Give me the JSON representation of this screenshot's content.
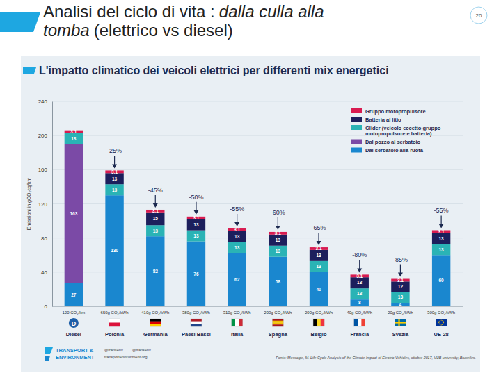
{
  "slide": {
    "title": [
      {
        "text": "Analisi del ciclo di vita :",
        "italic": false
      },
      {
        "text": "dalla culla alla tomba",
        "italic": true
      },
      {
        "text": "(elettrico vs diesel)",
        "italic": false
      }
    ],
    "page_number": 20
  },
  "chart_data": {
    "type": "bar",
    "stacked": true,
    "data_labels": true,
    "grid": true,
    "legend": "top-right",
    "title": "L'impatto climatico dei veicoli elettrici per differenti mix energetici",
    "y_label": "Emissioni in gCO₂eq/km",
    "categories": [
      "Diesel",
      "Polonia",
      "Germania",
      "Paesi Bassi",
      "Italia",
      "Spagna",
      "Belgio",
      "Francia",
      "Svezia",
      "UE-28"
    ],
    "category_sublabels": [
      "120 CO₂/km",
      "650g CO₂/kWh",
      "410g CO₂/kWh",
      "380g CO₂/kWh",
      "310g CO₂/kWh",
      "290g CO₂/kWh",
      "200g CO₂/kWh",
      "40g CO₂/kWh",
      "20g CO₂/kWh",
      "300g CO₂/kWh"
    ],
    "diesel_icon": "D",
    "reduction_labels": [
      null,
      "-25%",
      "-45%",
      "-50%",
      "-55%",
      "-60%",
      "-65%",
      "-80%",
      "-85%",
      "-55%"
    ],
    "series": [
      {
        "name": "Dal serbatoio alla ruota",
        "color": "#1a87cf",
        "values": [
          27,
          130,
          82,
          76,
          62,
          58,
          40,
          8,
          4,
          60
        ]
      },
      {
        "name": "Dal pozzo al serbatoio",
        "color": "#7b4aa6",
        "values": [
          163,
          null,
          null,
          null,
          null,
          null,
          null,
          null,
          null,
          null
        ]
      },
      {
        "name": "Glider (veicolo eccetto gruppo motopropulsore e batteria)",
        "color": "#2ab3b5",
        "values": [
          13,
          13,
          13,
          13,
          13,
          13,
          13,
          13,
          13,
          13
        ]
      },
      {
        "name": "Batteria al litio",
        "color": "#1c1f5c",
        "values": [
          null,
          13,
          15,
          13,
          13,
          13,
          13,
          13,
          12,
          13
        ]
      },
      {
        "name": "Gruppo motopropulsore",
        "color": "#d81b50",
        "values": [
          3.1,
          3.1,
          3.1,
          3.1,
          3.1,
          3.1,
          3.1,
          3.1,
          3.1,
          3.1
        ]
      }
    ],
    "ylim": [
      0,
      240
    ],
    "yticks": [
      0,
      40,
      80,
      120,
      160,
      200,
      240
    ],
    "source": "Fonte: Messagie, M. Life Cycle Analysis of the Climate Impact of Electric Vehicles, ottobre 2017, VUB university, Bruxelles.",
    "logo": [
      "TRANSPORT &",
      "ENVIRONMENT"
    ],
    "handles": [
      "@transenv",
      "@transenv",
      "transportenvironment.org"
    ]
  }
}
